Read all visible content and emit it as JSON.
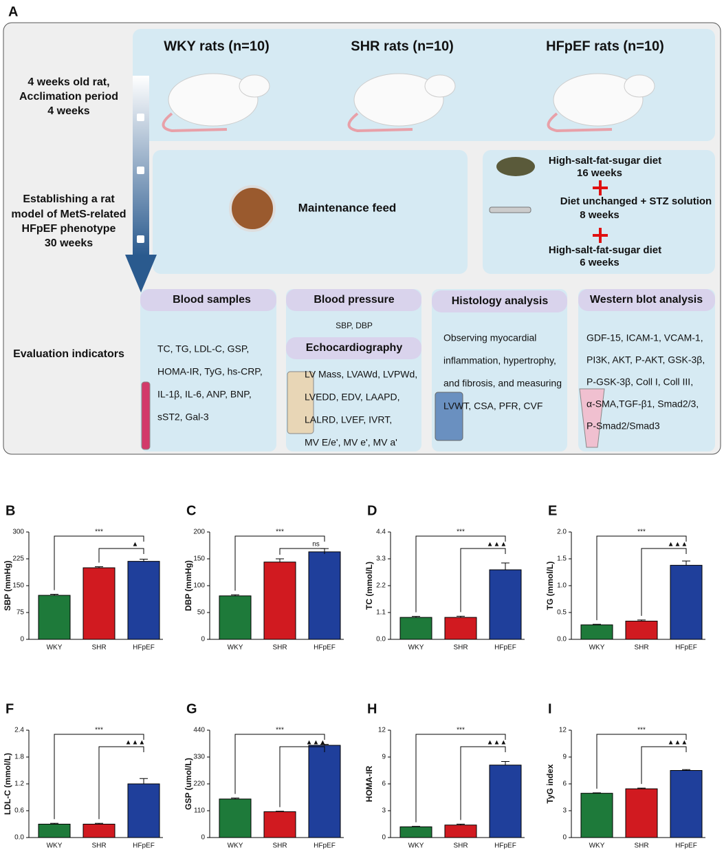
{
  "panel_a": {
    "label": "A",
    "groups": [
      "WKY rats (n=10)",
      "SHR rats (n=10)",
      "HFpEF rats (n=10)"
    ],
    "stages": [
      [
        "4 weeks old rat,",
        "Acclimation period",
        "4 weeks"
      ],
      [
        "Establishing a rat",
        "model of  MetS-related",
        "HFpEF phenotype",
        "30 weeks"
      ],
      [
        "Evaluation indicators"
      ]
    ],
    "maintenance": "Maintenance feed",
    "protocol": [
      [
        "High-salt-fat-sugar diet",
        "16 weeks"
      ],
      [
        "Diet unchanged + STZ solution",
        "8 weeks"
      ],
      [
        "High-salt-fat-sugar diet",
        "6 weeks"
      ]
    ],
    "indicators": [
      {
        "title": "Blood samples",
        "lines": [
          "TC, TG, LDL-C, GSP,",
          "HOMA-IR,  TyG, hs-CRP,",
          "IL-1β,  IL-6,  ANP, BNP,",
          "sST2, Gal-3"
        ]
      },
      {
        "title": "Blood pressure",
        "lines": [
          "SBP, DBP"
        ],
        "subtitle": "Echocardiography",
        "sub_lines": [
          "LV Mass, LVAWd, LVPWd,",
          "LVEDD, EDV, LAAPD,",
          "LALRD, LVEF, IVRT,",
          "MV E/e', MV e', MV a'"
        ]
      },
      {
        "title": "Histology analysis",
        "lines": [
          "Observing myocardial",
          "inflammation,  hypertrophy,",
          "and fibrosis, and measuring",
          "LVWT, CSA, PFR, CVF"
        ]
      },
      {
        "title": "Western blot analysis",
        "lines": [
          "GDF-15, ICAM-1, VCAM-1,",
          "PI3K, AKT, P-AKT, GSK-3β,",
          "P-GSK-3β,  Coll I, Coll III,",
          "α-SMA,TGF-β1, Smad2/3,",
          "P-Smad2/Smad3"
        ]
      }
    ]
  },
  "chart_data": [
    {
      "type": "bar",
      "panel": "B",
      "ylabel": "SBP (mmHg)",
      "categories": [
        "WKY",
        "SHR",
        "HFpEF"
      ],
      "values": [
        123,
        200,
        218
      ],
      "errors": [
        3,
        3,
        6
      ],
      "colors": [
        "#1e7a3a",
        "#d11a20",
        "#1f3f9b"
      ],
      "ylim": [
        0,
        300
      ],
      "yticks": [
        0,
        75,
        150,
        225,
        300
      ],
      "significance": [
        "***",
        "▲"
      ]
    },
    {
      "type": "bar",
      "panel": "C",
      "ylabel": "DBP (mmHg)",
      "categories": [
        "WKY",
        "SHR",
        "HFpEF"
      ],
      "values": [
        81,
        144,
        163
      ],
      "errors": [
        2,
        6,
        6
      ],
      "colors": [
        "#1e7a3a",
        "#d11a20",
        "#1f3f9b"
      ],
      "ylim": [
        0,
        200
      ],
      "yticks": [
        0,
        50,
        100,
        150,
        200
      ],
      "significance": [
        "***",
        "ns"
      ]
    },
    {
      "type": "bar",
      "panel": "D",
      "ylabel": "TC (mmol/L)",
      "categories": [
        "WKY",
        "SHR",
        "HFpEF"
      ],
      "values": [
        0.9,
        0.9,
        2.85
      ],
      "errors": [
        0.04,
        0.05,
        0.28
      ],
      "colors": [
        "#1e7a3a",
        "#d11a20",
        "#1f3f9b"
      ],
      "ylim": [
        0,
        4.4
      ],
      "yticks": [
        {
          "value": 0,
          "label": "0.0"
        },
        1.1,
        2.2,
        3.3,
        4.4
      ],
      "significance": [
        "***",
        "▲▲▲"
      ]
    },
    {
      "type": "bar",
      "panel": "E",
      "ylabel": "TG (mmol/L)",
      "categories": [
        "WKY",
        "SHR",
        "HFpEF"
      ],
      "values": [
        0.27,
        0.34,
        1.38
      ],
      "errors": [
        0.01,
        0.02,
        0.08
      ],
      "colors": [
        "#1e7a3a",
        "#d11a20",
        "#1f3f9b"
      ],
      "ylim": [
        0,
        2
      ],
      "yticks": [
        {
          "value": 0,
          "label": "0.0"
        },
        0.5,
        {
          "value": 1,
          "label": "1.0"
        },
        1.5,
        {
          "value": 2,
          "label": "2.0"
        }
      ],
      "significance": [
        "***",
        "▲▲▲"
      ]
    },
    {
      "type": "bar",
      "panel": "F",
      "ylabel": "LDL-C (mmol/L)",
      "categories": [
        "WKY",
        "SHR",
        "HFpEF"
      ],
      "values": [
        0.3,
        0.3,
        1.2
      ],
      "errors": [
        0.02,
        0.02,
        0.12
      ],
      "colors": [
        "#1e7a3a",
        "#d11a20",
        "#1f3f9b"
      ],
      "ylim": [
        0,
        2.4
      ],
      "yticks": [
        {
          "value": 0,
          "label": "0.0"
        },
        0.6,
        1.2,
        1.8,
        2.4
      ],
      "significance": [
        "***",
        "▲▲▲"
      ]
    },
    {
      "type": "bar",
      "panel": "G",
      "ylabel": "GSP (umol/L)",
      "categories": [
        "WKY",
        "SHR",
        "HFpEF"
      ],
      "values": [
        158,
        106,
        378
      ],
      "errors": [
        4,
        2,
        4
      ],
      "colors": [
        "#1e7a3a",
        "#d11a20",
        "#1f3f9b"
      ],
      "ylim": [
        0,
        440
      ],
      "yticks": [
        0,
        110,
        220,
        330,
        440
      ],
      "significance": [
        "***",
        "▲▲▲"
      ]
    },
    {
      "type": "bar",
      "panel": "H",
      "ylabel": "HOMA-IR",
      "categories": [
        "WKY",
        "SHR",
        "HFpEF"
      ],
      "values": [
        1.2,
        1.4,
        8.1
      ],
      "errors": [
        0.05,
        0.1,
        0.4
      ],
      "colors": [
        "#1e7a3a",
        "#d11a20",
        "#1f3f9b"
      ],
      "ylim": [
        0,
        12
      ],
      "yticks": [
        0,
        3,
        6,
        9,
        12
      ],
      "significance": [
        "***",
        "▲▲▲"
      ]
    },
    {
      "type": "bar",
      "panel": "I",
      "ylabel": "TyG index",
      "categories": [
        "WKY",
        "SHR",
        "HFpEF"
      ],
      "values": [
        4.95,
        5.45,
        7.5
      ],
      "errors": [
        0.05,
        0.08,
        0.1
      ],
      "colors": [
        "#1e7a3a",
        "#d11a20",
        "#1f3f9b"
      ],
      "ylim": [
        0,
        12
      ],
      "yticks": [
        0,
        3,
        6,
        9,
        12
      ],
      "significance": [
        "***",
        "▲▲▲"
      ]
    }
  ]
}
